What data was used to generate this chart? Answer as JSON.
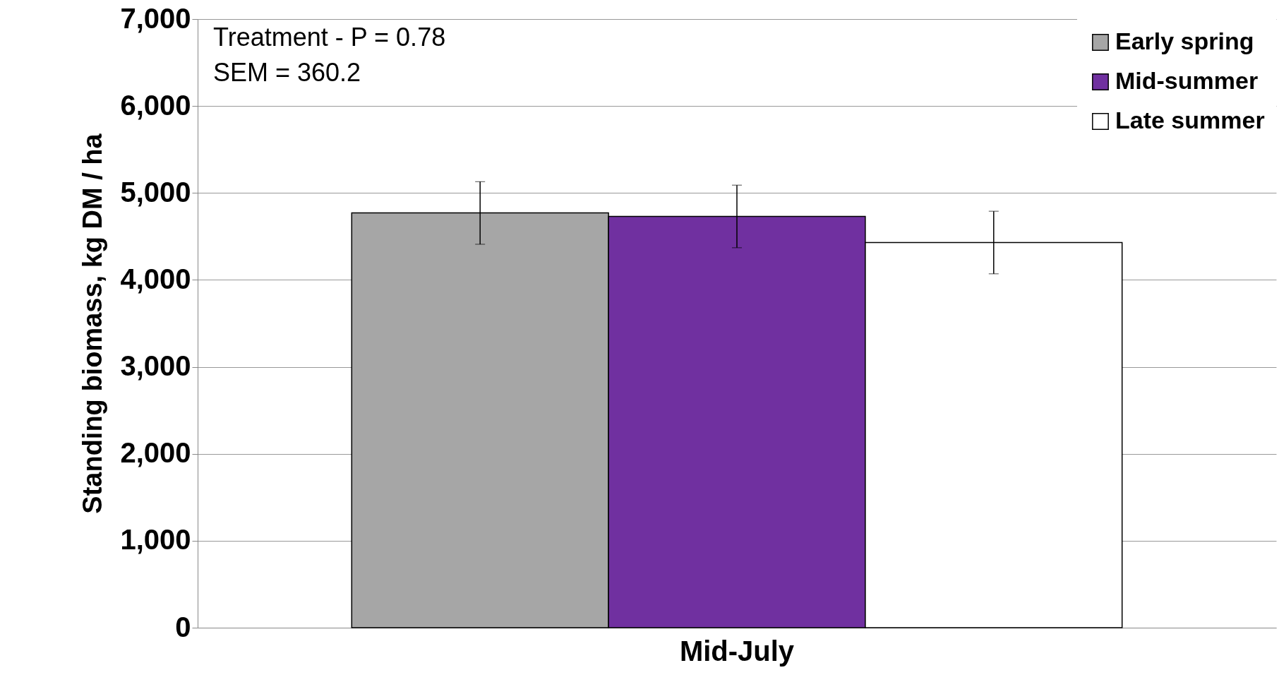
{
  "chart_data": {
    "type": "bar",
    "ylabel": "Standing biomass, kg DM / ha",
    "categories": [
      "Mid-July"
    ],
    "series": [
      {
        "name": "Early spring",
        "color": "#a6a6a6",
        "values": [
          4770
        ],
        "errors": [
          360
        ]
      },
      {
        "name": "Mid-summer",
        "color": "#7030a0",
        "values": [
          4730
        ],
        "errors": [
          360
        ]
      },
      {
        "name": "Late summer",
        "color": "#ffffff",
        "values": [
          4430
        ],
        "errors": [
          360
        ]
      }
    ],
    "ylim": [
      0,
      7000
    ],
    "yticks": [
      {
        "value": 0,
        "label": "0"
      },
      {
        "value": 1000,
        "label": "1,000"
      },
      {
        "value": 2000,
        "label": "2,000"
      },
      {
        "value": 3000,
        "label": "3,000"
      },
      {
        "value": 4000,
        "label": "4,000"
      },
      {
        "value": 5000,
        "label": "5,000"
      },
      {
        "value": 6000,
        "label": "6,000"
      },
      {
        "value": 7000,
        "label": "7,000"
      }
    ],
    "grid": "y",
    "legend": "top right",
    "annotations": [
      "Treatment - P = 0.78",
      "SEM = 360.2"
    ]
  }
}
